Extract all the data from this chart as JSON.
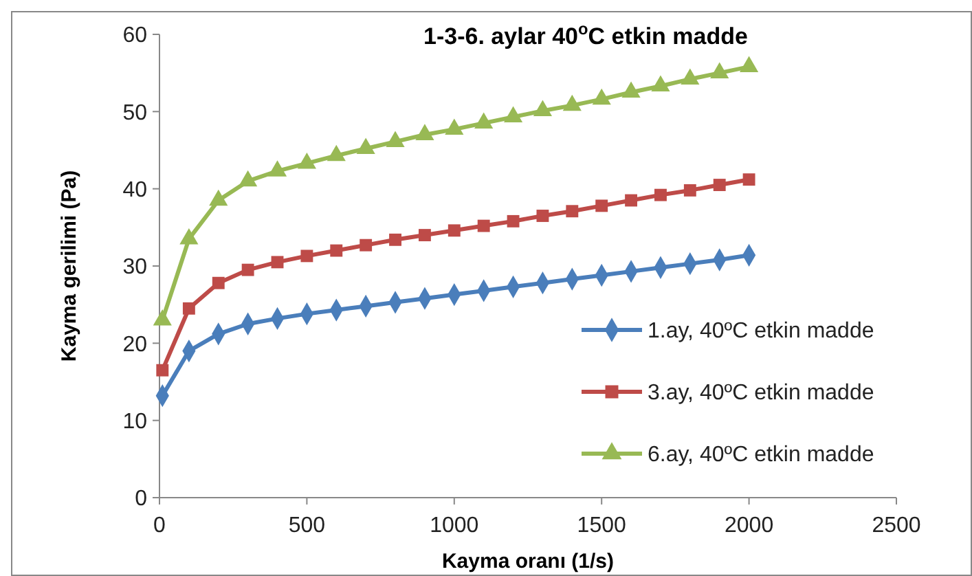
{
  "chart_data": {
    "type": "line",
    "title": "1-3-6. aylar 40$^{o}$C etkin madde",
    "xlabel": "Kayma oranı (1/s)",
    "ylabel": "Kayma gerilimi (Pa)",
    "x": [
      10,
      100,
      200,
      300,
      400,
      500,
      600,
      700,
      800,
      900,
      1000,
      1100,
      1200,
      1300,
      1400,
      1500,
      1600,
      1700,
      1800,
      1900,
      2000
    ],
    "xlim": [
      0,
      2500
    ],
    "xticks": [
      0,
      500,
      1000,
      1500,
      2000,
      2500
    ],
    "ylim": [
      0,
      60
    ],
    "yticks": [
      0,
      10,
      20,
      30,
      40,
      50,
      60
    ],
    "grid": false,
    "legend": "right",
    "series": [
      {
        "name": "1.ay, 40ºC etkin madde",
        "color": "#4a7ebb",
        "marker": "diamond",
        "values": [
          13.2,
          19,
          21.2,
          22.5,
          23.2,
          23.8,
          24.3,
          24.8,
          25.3,
          25.8,
          26.3,
          26.8,
          27.3,
          27.8,
          28.3,
          28.8,
          29.3,
          29.8,
          30.3,
          30.8,
          31.4
        ]
      },
      {
        "name": "3.ay, 40ºC etkin madde",
        "color": "#be4b48",
        "marker": "square",
        "values": [
          16.5,
          24.5,
          27.8,
          29.5,
          30.5,
          31.3,
          32,
          32.7,
          33.4,
          34,
          34.6,
          35.2,
          35.8,
          36.5,
          37.1,
          37.8,
          38.5,
          39.2,
          39.8,
          40.5,
          41.2
        ]
      },
      {
        "name": "6.ay, 40ºC etkin madde",
        "color": "#98b954",
        "marker": "triangle",
        "values": [
          23,
          33.5,
          38.5,
          41,
          42.3,
          43.3,
          44.3,
          45.2,
          46.1,
          47,
          47.7,
          48.5,
          49.3,
          50.1,
          50.8,
          51.6,
          52.5,
          53.3,
          54.2,
          55,
          55.8
        ]
      }
    ]
  }
}
